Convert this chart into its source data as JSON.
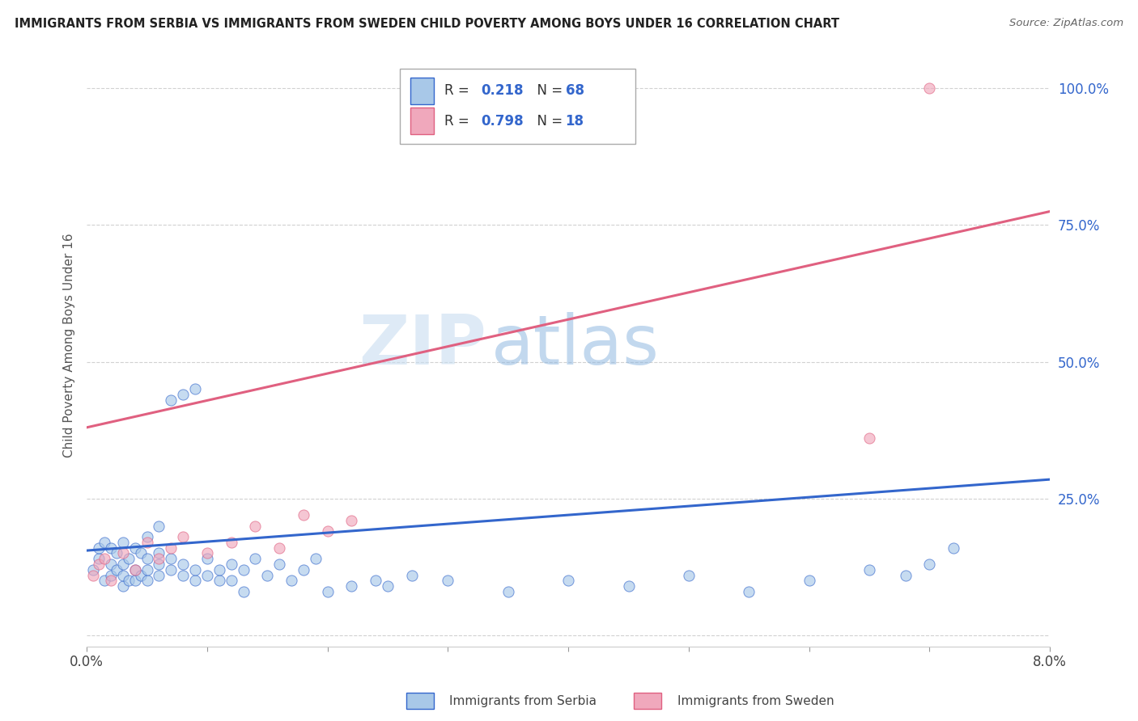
{
  "title": "IMMIGRANTS FROM SERBIA VS IMMIGRANTS FROM SWEDEN CHILD POVERTY AMONG BOYS UNDER 16 CORRELATION CHART",
  "source": "Source: ZipAtlas.com",
  "ylabel": "Child Poverty Among Boys Under 16",
  "xlim": [
    0.0,
    0.08
  ],
  "ylim": [
    -0.02,
    1.08
  ],
  "serbia_color": "#a8c8e8",
  "sweden_color": "#f0a8bc",
  "serbia_line_color": "#3366cc",
  "sweden_line_color": "#e06080",
  "legend_r_color": "#3366cc",
  "serbia_R": 0.218,
  "serbia_N": 68,
  "sweden_R": 0.798,
  "sweden_N": 18,
  "watermark_zip": "ZIP",
  "watermark_atlas": "atlas",
  "serbia_trend_x0": 0.0,
  "serbia_trend_y0": 0.155,
  "serbia_trend_x1": 0.08,
  "serbia_trend_y1": 0.285,
  "sweden_trend_x0": 0.0,
  "sweden_trend_y0": 0.38,
  "sweden_trend_x1": 0.08,
  "sweden_trend_y1": 0.775,
  "serbia_x": [
    0.0005,
    0.001,
    0.001,
    0.0015,
    0.0015,
    0.002,
    0.002,
    0.002,
    0.0025,
    0.0025,
    0.003,
    0.003,
    0.003,
    0.003,
    0.0035,
    0.0035,
    0.004,
    0.004,
    0.004,
    0.0045,
    0.0045,
    0.005,
    0.005,
    0.005,
    0.005,
    0.006,
    0.006,
    0.006,
    0.006,
    0.007,
    0.007,
    0.007,
    0.008,
    0.008,
    0.008,
    0.009,
    0.009,
    0.009,
    0.01,
    0.01,
    0.011,
    0.011,
    0.012,
    0.012,
    0.013,
    0.013,
    0.014,
    0.015,
    0.016,
    0.017,
    0.018,
    0.019,
    0.02,
    0.022,
    0.024,
    0.025,
    0.027,
    0.03,
    0.035,
    0.04,
    0.045,
    0.05,
    0.055,
    0.06,
    0.065,
    0.068,
    0.07,
    0.072
  ],
  "serbia_y": [
    0.12,
    0.14,
    0.16,
    0.1,
    0.17,
    0.11,
    0.13,
    0.16,
    0.12,
    0.15,
    0.09,
    0.11,
    0.13,
    0.17,
    0.1,
    0.14,
    0.1,
    0.12,
    0.16,
    0.11,
    0.15,
    0.1,
    0.12,
    0.14,
    0.18,
    0.11,
    0.13,
    0.15,
    0.2,
    0.12,
    0.14,
    0.43,
    0.11,
    0.13,
    0.44,
    0.1,
    0.12,
    0.45,
    0.11,
    0.14,
    0.1,
    0.12,
    0.1,
    0.13,
    0.08,
    0.12,
    0.14,
    0.11,
    0.13,
    0.1,
    0.12,
    0.14,
    0.08,
    0.09,
    0.1,
    0.09,
    0.11,
    0.1,
    0.08,
    0.1,
    0.09,
    0.11,
    0.08,
    0.1,
    0.12,
    0.11,
    0.13,
    0.16
  ],
  "sweden_x": [
    0.0005,
    0.001,
    0.0015,
    0.002,
    0.003,
    0.004,
    0.005,
    0.006,
    0.007,
    0.008,
    0.01,
    0.012,
    0.014,
    0.016,
    0.018,
    0.02,
    0.022,
    0.065
  ],
  "sweden_y": [
    0.11,
    0.13,
    0.14,
    0.1,
    0.15,
    0.12,
    0.17,
    0.14,
    0.16,
    0.18,
    0.15,
    0.17,
    0.2,
    0.16,
    0.22,
    0.19,
    0.21,
    0.36
  ]
}
